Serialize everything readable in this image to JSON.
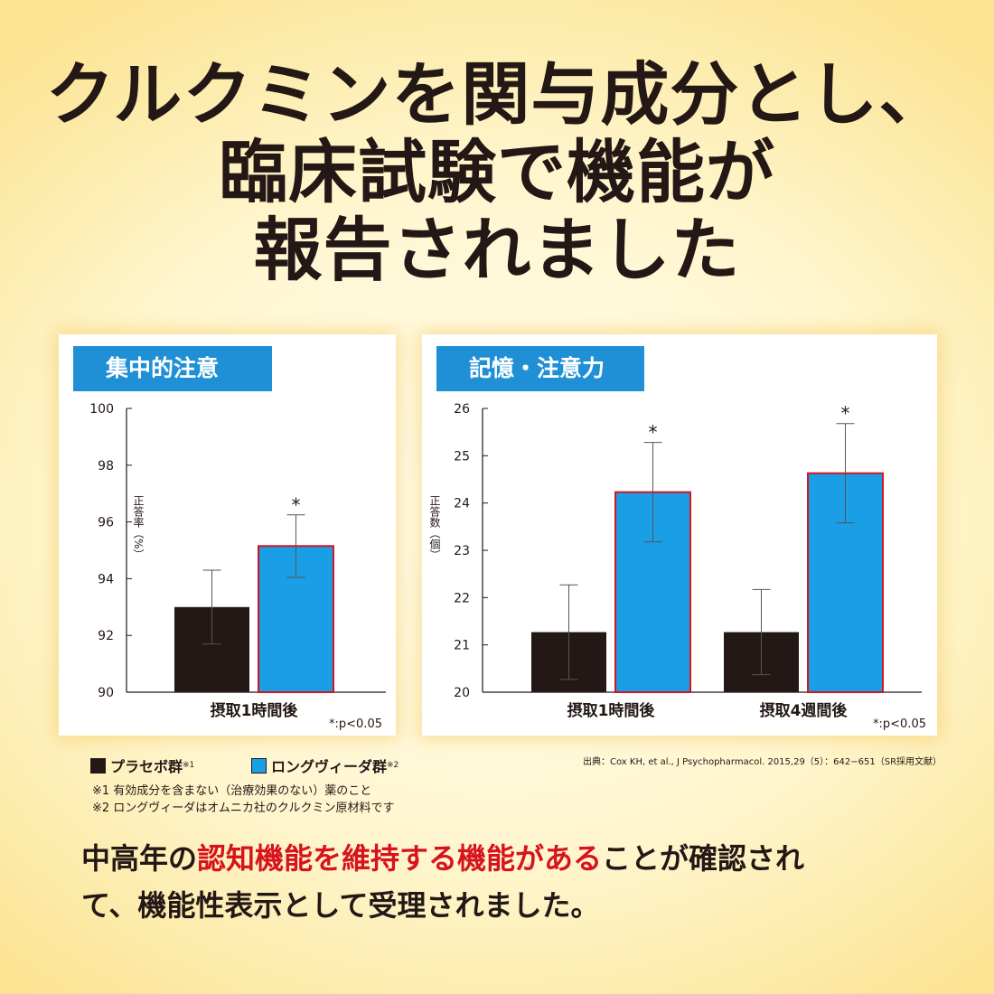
{
  "headline": {
    "line1": "クルクミンを関与成分とし、",
    "line2": "臨床試験で機能が",
    "line3": "報告されました"
  },
  "colors": {
    "placebo": "#231815",
    "treatment": "#1a9ee6",
    "treatment_outline": "#d7131e",
    "title_bar": "#1f8fd6",
    "highlight": "#d7131e"
  },
  "chart_data": [
    {
      "type": "bar",
      "title": "集中的注意",
      "ylabel": "正答率（%）",
      "ylim": [
        90,
        100
      ],
      "yticks": [
        90,
        92,
        94,
        96,
        98,
        100
      ],
      "categories": [
        "摂取1時間後"
      ],
      "series": [
        {
          "name": "プラセボ群",
          "values": [
            93.0
          ],
          "error": [
            1.3
          ]
        },
        {
          "name": "ロングヴィーダ群",
          "values": [
            95.15
          ],
          "error": [
            1.1
          ]
        }
      ],
      "significance_mark": "*",
      "note": "*:p<0.05"
    },
    {
      "type": "bar",
      "title": "記憶・注意力",
      "ylabel": "正答数（個）",
      "ylim": [
        20,
        26
      ],
      "yticks": [
        20,
        21,
        22,
        23,
        24,
        25,
        26
      ],
      "categories": [
        "摂取1時間後",
        "摂取4週間後"
      ],
      "series": [
        {
          "name": "プラセボ群",
          "values": [
            21.27,
            21.27
          ],
          "error": [
            1.0,
            0.9
          ]
        },
        {
          "name": "ロングヴィーダ群",
          "values": [
            24.23,
            24.63
          ],
          "error": [
            1.05,
            1.05
          ]
        }
      ],
      "significance_mark": "*",
      "note": "*:p<0.05"
    }
  ],
  "legend": {
    "placebo": "プラセボ群",
    "placebo_sup": "※1",
    "treatment": "ロングヴィーダ群",
    "treatment_sup": "※2"
  },
  "source": "出典：Cox KH, et al., J Psychopharmacol. 2015,29（5）：642−651（SR採用文献）",
  "footnotes": [
    "※1 有効成分を含まない（治療効果のない）薬のこと",
    "※2 ロングヴィーダはオムニカ社のクルクミン原材料です"
  ],
  "conclusion": {
    "part1": "中高年の",
    "part2": "認知機能を維持する機能がある",
    "part3": "ことが確認され",
    "line2": "て、機能性表示として受理されました。"
  }
}
